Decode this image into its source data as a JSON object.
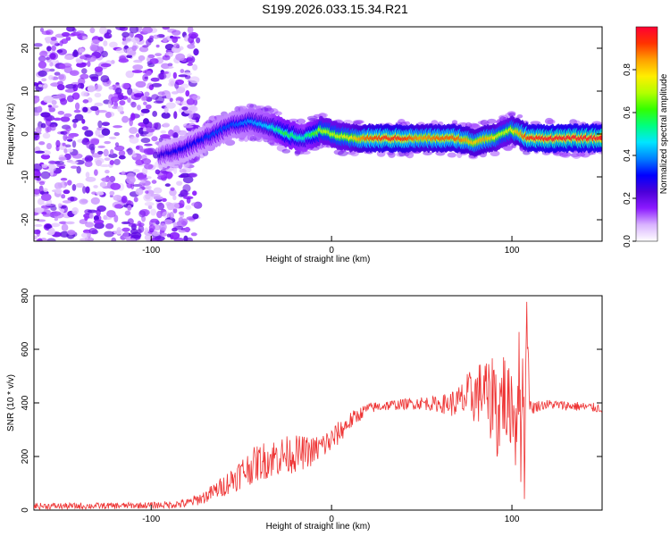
{
  "title": "S199.2026.033.15.34.R21",
  "chart_data": [
    {
      "type": "heatmap",
      "xlabel": "Height of straight line (km)",
      "ylabel": "Frequency (Hz)",
      "xlim": [
        -165,
        150
      ],
      "ylim": [
        -25,
        25
      ],
      "x_ticks": [
        -100,
        0,
        100
      ],
      "y_ticks": [
        20,
        10,
        0,
        -10,
        -20
      ],
      "colorbar": {
        "label": "Normalized spectral amplitude",
        "range": [
          0.0,
          1.0
        ],
        "ticks": [
          "0.0",
          "0.2",
          "0.4",
          "0.6",
          "0.8"
        ],
        "colors": [
          "#ffffff",
          "#d9b3ff",
          "#8c1aff",
          "#4b00d9",
          "#0000ff",
          "#0080ff",
          "#00e6ff",
          "#00ff80",
          "#33ff00",
          "#b3ff00",
          "#ffee00",
          "#ffa000",
          "#ff3300",
          "#ff0033"
        ]
      },
      "ridge": {
        "x": [
          -95,
          -85,
          -75,
          -65,
          -55,
          -45,
          -35,
          -25,
          -15,
          -10,
          -5,
          0,
          10,
          20,
          30,
          40,
          50,
          60,
          70,
          80,
          85,
          90,
          95,
          100,
          105,
          110,
          120,
          130,
          140,
          150
        ],
        "y": [
          -5,
          -4,
          -2,
          0,
          2,
          3,
          2,
          0,
          -1,
          0,
          1,
          0,
          -1,
          -1,
          -1,
          -1,
          -1,
          -1,
          -1,
          -2,
          -1,
          -1,
          0,
          1,
          0,
          -1,
          -1,
          -1,
          -1,
          -1
        ],
        "amplitude": [
          0.25,
          0.3,
          0.3,
          0.35,
          0.35,
          0.4,
          0.45,
          0.6,
          0.5,
          0.6,
          0.7,
          0.7,
          0.75,
          0.9,
          0.95,
          0.95,
          0.85,
          0.9,
          0.9,
          0.8,
          0.85,
          0.8,
          0.7,
          0.75,
          0.85,
          0.95,
          0.98,
          0.98,
          0.98,
          0.98
        ]
      },
      "noise_region": {
        "x_range": [
          -165,
          -80
        ],
        "amplitude": 0.15
      }
    },
    {
      "type": "line",
      "xlabel": "Height of straight line (km)",
      "ylabel": "SNR (10 * v/v)",
      "xlim": [
        -165,
        150
      ],
      "ylim": [
        0,
        800
      ],
      "x_ticks": [
        -100,
        0,
        100
      ],
      "y_ticks": [
        0,
        200,
        400,
        600,
        800
      ],
      "series": [
        {
          "name": "SNR",
          "color": "#ee3333",
          "x": [
            -165,
            -140,
            -120,
            -100,
            -90,
            -80,
            -70,
            -60,
            -50,
            -40,
            -30,
            -20,
            -10,
            0,
            10,
            20,
            30,
            40,
            50,
            60,
            70,
            75,
            80,
            85,
            88,
            90,
            92,
            95,
            98,
            100,
            102,
            104,
            105,
            106,
            107,
            108,
            110,
            115,
            120,
            130,
            140,
            150
          ],
          "y": [
            15,
            15,
            16,
            18,
            20,
            25,
            50,
            90,
            140,
            180,
            200,
            210,
            220,
            260,
            330,
            380,
            390,
            395,
            400,
            395,
            400,
            420,
            430,
            450,
            380,
            480,
            330,
            450,
            360,
            420,
            300,
            550,
            120,
            700,
            60,
            780,
            380,
            390,
            395,
            390,
            385,
            380
          ],
          "volatility": [
            12,
            12,
            12,
            12,
            14,
            18,
            25,
            40,
            60,
            70,
            75,
            70,
            55,
            50,
            35,
            20,
            20,
            20,
            25,
            30,
            60,
            90,
            110,
            130,
            150,
            160,
            170,
            180,
            170,
            150,
            160,
            170,
            180,
            170,
            120,
            100,
            30,
            20,
            18,
            18,
            18,
            18
          ]
        }
      ]
    }
  ]
}
